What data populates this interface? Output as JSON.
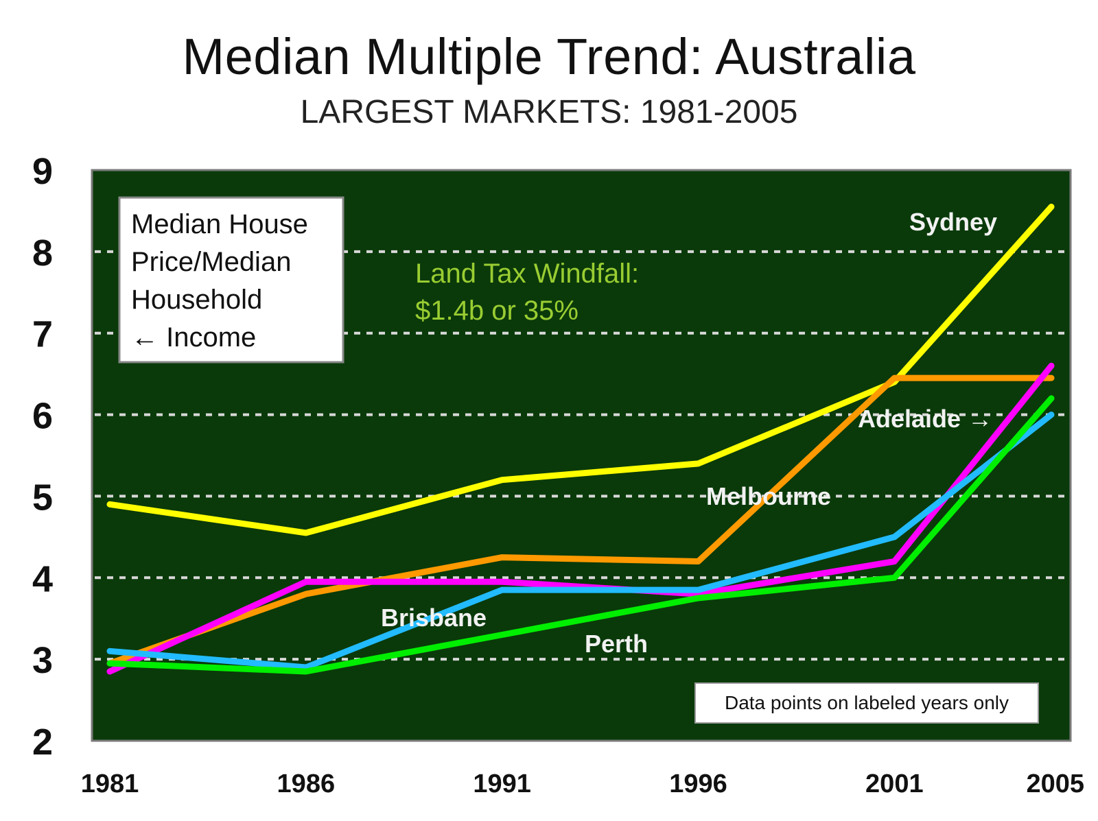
{
  "chart_data": {
    "type": "line",
    "title": "Median Multiple Trend: Australia",
    "subtitle": "LARGEST MARKETS: 1981-2005",
    "xlabel": "",
    "ylabel": "",
    "x": [
      1981,
      1986,
      1991,
      1996,
      2001,
      2005
    ],
    "x_tick_labels": [
      "1981",
      "1986",
      "1991",
      "1996",
      "2001",
      "2005"
    ],
    "y_tick_labels": [
      "2",
      "3",
      "4",
      "5",
      "6",
      "7",
      "8",
      "9"
    ],
    "ylim": [
      2,
      9
    ],
    "grid": "horizontal dashed",
    "plot_background": "#0a3a0a",
    "series": [
      {
        "name": "Sydney",
        "color": "#ffff00",
        "values": [
          4.9,
          4.55,
          5.2,
          5.4,
          6.4,
          8.55
        ]
      },
      {
        "name": "Melbourne",
        "color": "#ff9900",
        "values": [
          2.95,
          3.8,
          4.25,
          4.2,
          6.45,
          6.45
        ]
      },
      {
        "name": "Adelaide",
        "color": "#ff00ff",
        "values": [
          2.85,
          3.95,
          3.95,
          3.8,
          4.2,
          6.6
        ]
      },
      {
        "name": "Brisbane",
        "color": "#22bbff",
        "values": [
          3.1,
          2.9,
          3.85,
          3.85,
          4.5,
          6.0
        ]
      },
      {
        "name": "Perth",
        "color": "#00ee00",
        "values": [
          2.95,
          2.85,
          3.3,
          3.75,
          4.0,
          6.2
        ]
      }
    ],
    "labels": {
      "sydney": "Sydney",
      "melbourne": "Melbourne",
      "adelaide": "Adelaide →",
      "brisbane": "Brisbane",
      "perth": "Perth"
    },
    "annotation": {
      "line1": "Land Tax Windfall:",
      "line2": "$1.4b or 35%"
    },
    "legend_box": {
      "line1": "Median House",
      "line2": "Price/Median",
      "line3": "Household",
      "line4": "← Income"
    },
    "note": "Data points on labeled years only"
  }
}
